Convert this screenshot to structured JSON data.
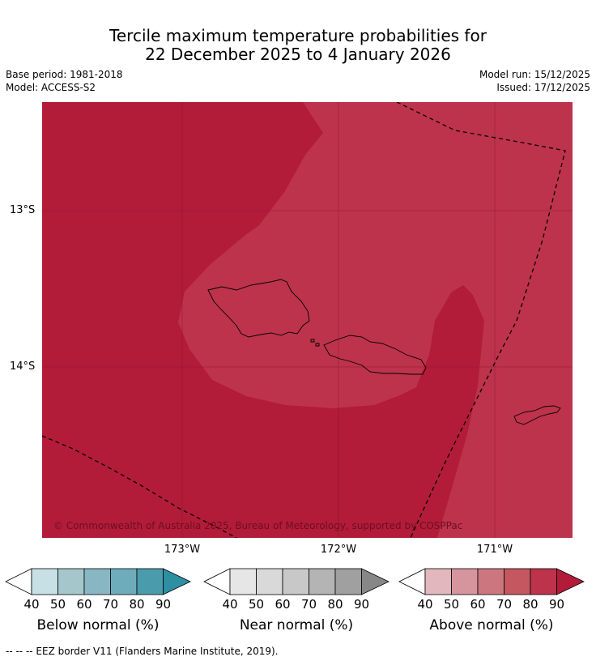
{
  "title": {
    "line1": "Tercile maximum temperature probabilities for",
    "line2": "22 December 2025 to 4 January 2026"
  },
  "meta": {
    "base_period": "Base period: 1981-2018",
    "model": "Model: ACCESS-S2",
    "model_run": "Model run: 15/12/2025",
    "issued": "Issued: 17/12/2025"
  },
  "map": {
    "lat_labels": [
      "13°S",
      "14°S"
    ],
    "lon_labels": [
      "173°W",
      "172°W",
      "171°W"
    ],
    "copyright": "© Commonwealth of Australia 2025, Bureau of Meteorology, supported by COSPPac",
    "colors": {
      "above_90": "#b21c39",
      "above_80": "#bd334b",
      "above_70": "#c45760",
      "land_outline": "#000000"
    }
  },
  "legends": [
    {
      "label": "Below normal (%)",
      "ticks": [
        "40",
        "50",
        "60",
        "70",
        "80",
        "90"
      ],
      "colors": [
        "#ffffff",
        "#c6e0e6",
        "#a5c7cc",
        "#89b6c3",
        "#6eacbb",
        "#4a9cad",
        "#2e8fa3"
      ]
    },
    {
      "label": "Near normal (%)",
      "ticks": [
        "40",
        "50",
        "60",
        "70",
        "80",
        "90"
      ],
      "colors": [
        "#ffffff",
        "#e6e6e6",
        "#d9d9d9",
        "#c8c8c8",
        "#b4b4b4",
        "#a0a0a0",
        "#878787"
      ]
    },
    {
      "label": "Above normal (%)",
      "ticks": [
        "40",
        "50",
        "60",
        "70",
        "80",
        "90"
      ],
      "colors": [
        "#ffffff",
        "#e2b7bd",
        "#d6959d",
        "#cc777f",
        "#c45760",
        "#bd334b",
        "#b21c39"
      ]
    }
  ],
  "footer": "--  --  -- EEZ border V11 (Flanders Marine Institute, 2019)."
}
